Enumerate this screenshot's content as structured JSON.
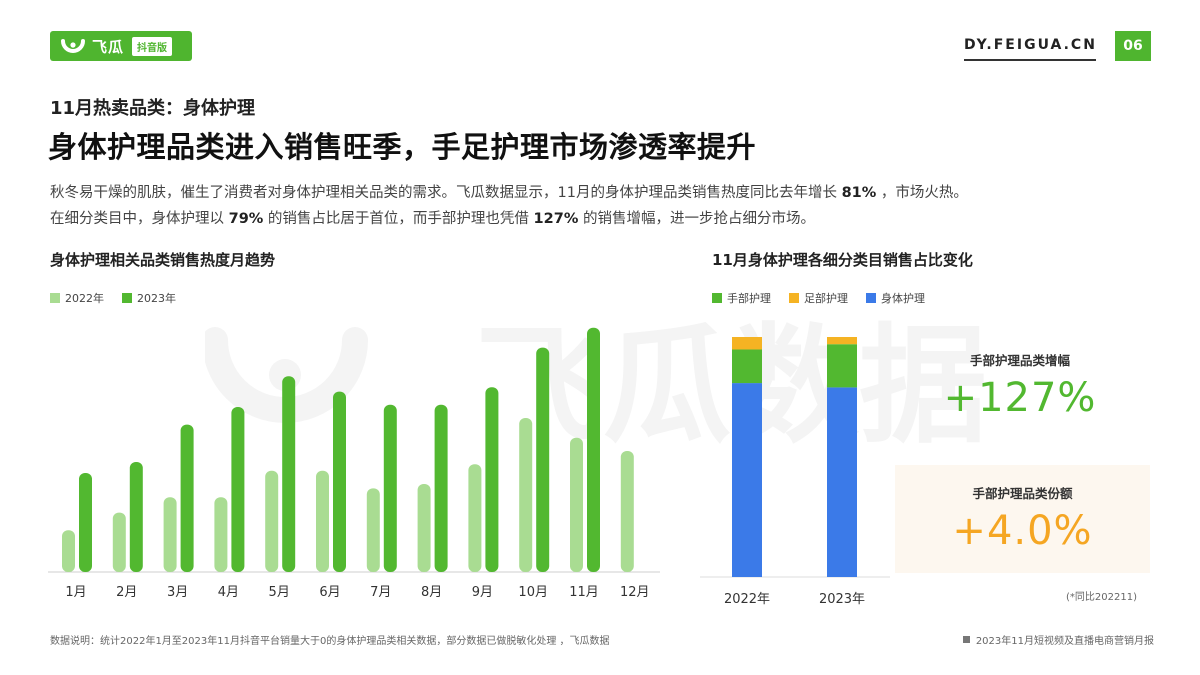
{
  "header": {
    "brand": "飞瓜",
    "badge": "抖音版",
    "site": "DY.FEIGUA.CN",
    "page_number": "06"
  },
  "section_label": "11月热卖品类：身体护理",
  "headline": "身体护理品类进入销售旺季，手足护理市场渗透率提升",
  "paragraph": {
    "line1_a": "秋冬易干燥的肌肤，催生了消费者对身体护理相关品类的需求。飞瓜数据显示，11月的身体护理品类销售热度同比去年增长 ",
    "line1_b": "81%",
    "line1_c": " ，市场火热。",
    "line2_a": "在细分类目中，身体护理以 ",
    "line2_b": "79%",
    "line2_c": " 的销售占比居于首位，而手部护理也凭借 ",
    "line2_d": "127%",
    "line2_e": " 的销售增幅，进一步抢占细分市场。"
  },
  "watermark_text": "飞瓜数据",
  "colors": {
    "brand_green": "#4fb52f",
    "bar_2022": "#a9dc92",
    "bar_2023": "#52b830",
    "hand": "#52b830",
    "foot": "#f5b323",
    "body": "#3b7ae8",
    "callout_green": "#52b830",
    "callout_orange": "#f5a623"
  },
  "chart_data": [
    {
      "type": "bar",
      "title": "身体护理相关品类销售热度月趋势",
      "categories": [
        "1月",
        "2月",
        "3月",
        "4月",
        "5月",
        "6月",
        "7月",
        "8月",
        "9月",
        "10月",
        "11月",
        "12月"
      ],
      "series": [
        {
          "name": "2022年",
          "values": [
            19,
            27,
            34,
            34,
            46,
            46,
            38,
            40,
            49,
            70,
            61,
            55
          ]
        },
        {
          "name": "2023年",
          "values": [
            45,
            50,
            67,
            75,
            89,
            82,
            76,
            76,
            84,
            102,
            111,
            null
          ]
        }
      ],
      "ylim": [
        0,
        120
      ],
      "grid": false,
      "legend": "top-left"
    },
    {
      "type": "bar",
      "stacked": true,
      "title": "11月身体护理各细分类目销售占比变化",
      "categories": [
        "2022年",
        "2023年"
      ],
      "series": [
        {
          "name": "身体护理",
          "values": [
            80.8,
            79.0
          ]
        },
        {
          "name": "手部护理",
          "values": [
            14.0,
            18.0
          ]
        },
        {
          "name": "足部护理",
          "values": [
            5.2,
            3.0
          ]
        }
      ],
      "legend_order": [
        "手部护理",
        "足部护理",
        "身体护理"
      ],
      "ylim": [
        0,
        100
      ],
      "legend": "top-left"
    }
  ],
  "callouts": [
    {
      "label": "手部护理品类增幅",
      "value": "+127%"
    },
    {
      "label": "手部护理品类份额",
      "value": "+4.0%"
    }
  ],
  "note": "(*同比202211)",
  "footer": {
    "left": "数据说明：统计2022年1月至2023年11月抖音平台销量大于0的身体护理品类相关数据，部分数据已做脱敏化处理 ，飞瓜数据",
    "right": "2023年11月短视频及直播电商营销月报"
  }
}
